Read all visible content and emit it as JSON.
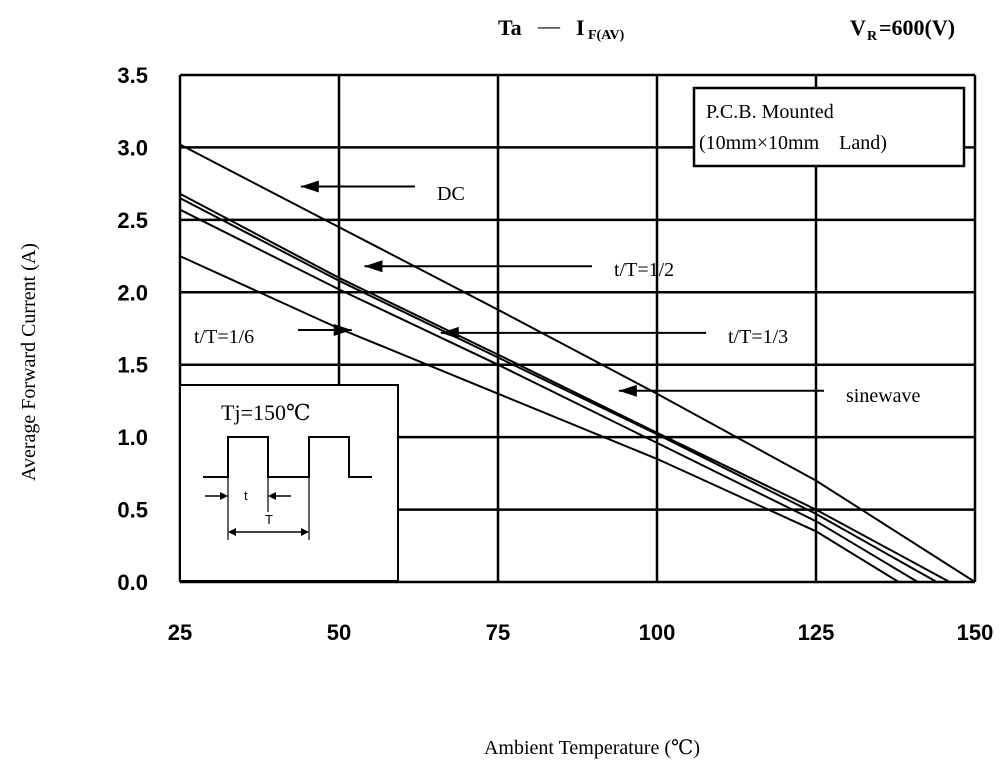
{
  "chart_data": {
    "type": "line",
    "title_left": "Ta",
    "title_dash": "—",
    "title_right_main": "I",
    "title_right_sub": "F(AV)",
    "condition_main": "V",
    "condition_sub": "R",
    "condition_value": "=600(V)",
    "xlabel": "Ambient Temperature (℃)",
    "ylabel": "Average Forward Current (A)",
    "xlim": [
      25,
      150
    ],
    "ylim": [
      0,
      3.5
    ],
    "x_ticks": [
      "25",
      "50",
      "75",
      "100",
      "125",
      "150"
    ],
    "y_ticks": [
      "0.0",
      "0.5",
      "1.0",
      "1.5",
      "2.0",
      "2.5",
      "3.0",
      "3.5"
    ],
    "grid": true,
    "mounting_note": [
      "P.C.B. Mounted",
      "(10mm×10mm    Land)"
    ],
    "inset": {
      "title": "Tj=150℃",
      "t_label": "t",
      "T_label": "T"
    },
    "series": [
      {
        "name": "DC",
        "x": [
          25,
          50,
          75,
          100,
          125,
          150
        ],
        "y": [
          3.02,
          2.45,
          1.88,
          1.3,
          0.7,
          0.0
        ]
      },
      {
        "name": "t/T=1/2",
        "x": [
          25,
          50,
          75,
          100,
          125,
          146
        ],
        "y": [
          2.68,
          2.1,
          1.57,
          1.03,
          0.5,
          0.0
        ]
      },
      {
        "name": "sinewave",
        "x": [
          25,
          50,
          75,
          100,
          125,
          144
        ],
        "y": [
          2.65,
          2.08,
          1.55,
          1.02,
          0.47,
          0.0
        ]
      },
      {
        "name": "t/T=1/3",
        "x": [
          25,
          50,
          75,
          100,
          125,
          141
        ],
        "y": [
          2.57,
          2.02,
          1.5,
          0.96,
          0.42,
          0.0
        ]
      },
      {
        "name": "t/T=1/6",
        "x": [
          25,
          50,
          75,
          100,
          125,
          138
        ],
        "y": [
          2.25,
          1.75,
          1.3,
          0.85,
          0.35,
          0.0
        ]
      }
    ],
    "annotations": [
      {
        "text": "DC",
        "series": "DC",
        "x": 44,
        "y": 2.73
      },
      {
        "text": "t/T=1/2",
        "series": "t/T=1/2",
        "x": 54,
        "y": 2.18
      },
      {
        "text": "t/T=1/3",
        "series": "t/T=1/3",
        "x": 66,
        "y": 1.72
      },
      {
        "text": "sinewave",
        "series": "sinewave",
        "x": 94,
        "y": 1.32
      },
      {
        "text": "t/T=1/6",
        "series": "t/T=1/6",
        "x": 52,
        "y": 1.74
      }
    ]
  }
}
